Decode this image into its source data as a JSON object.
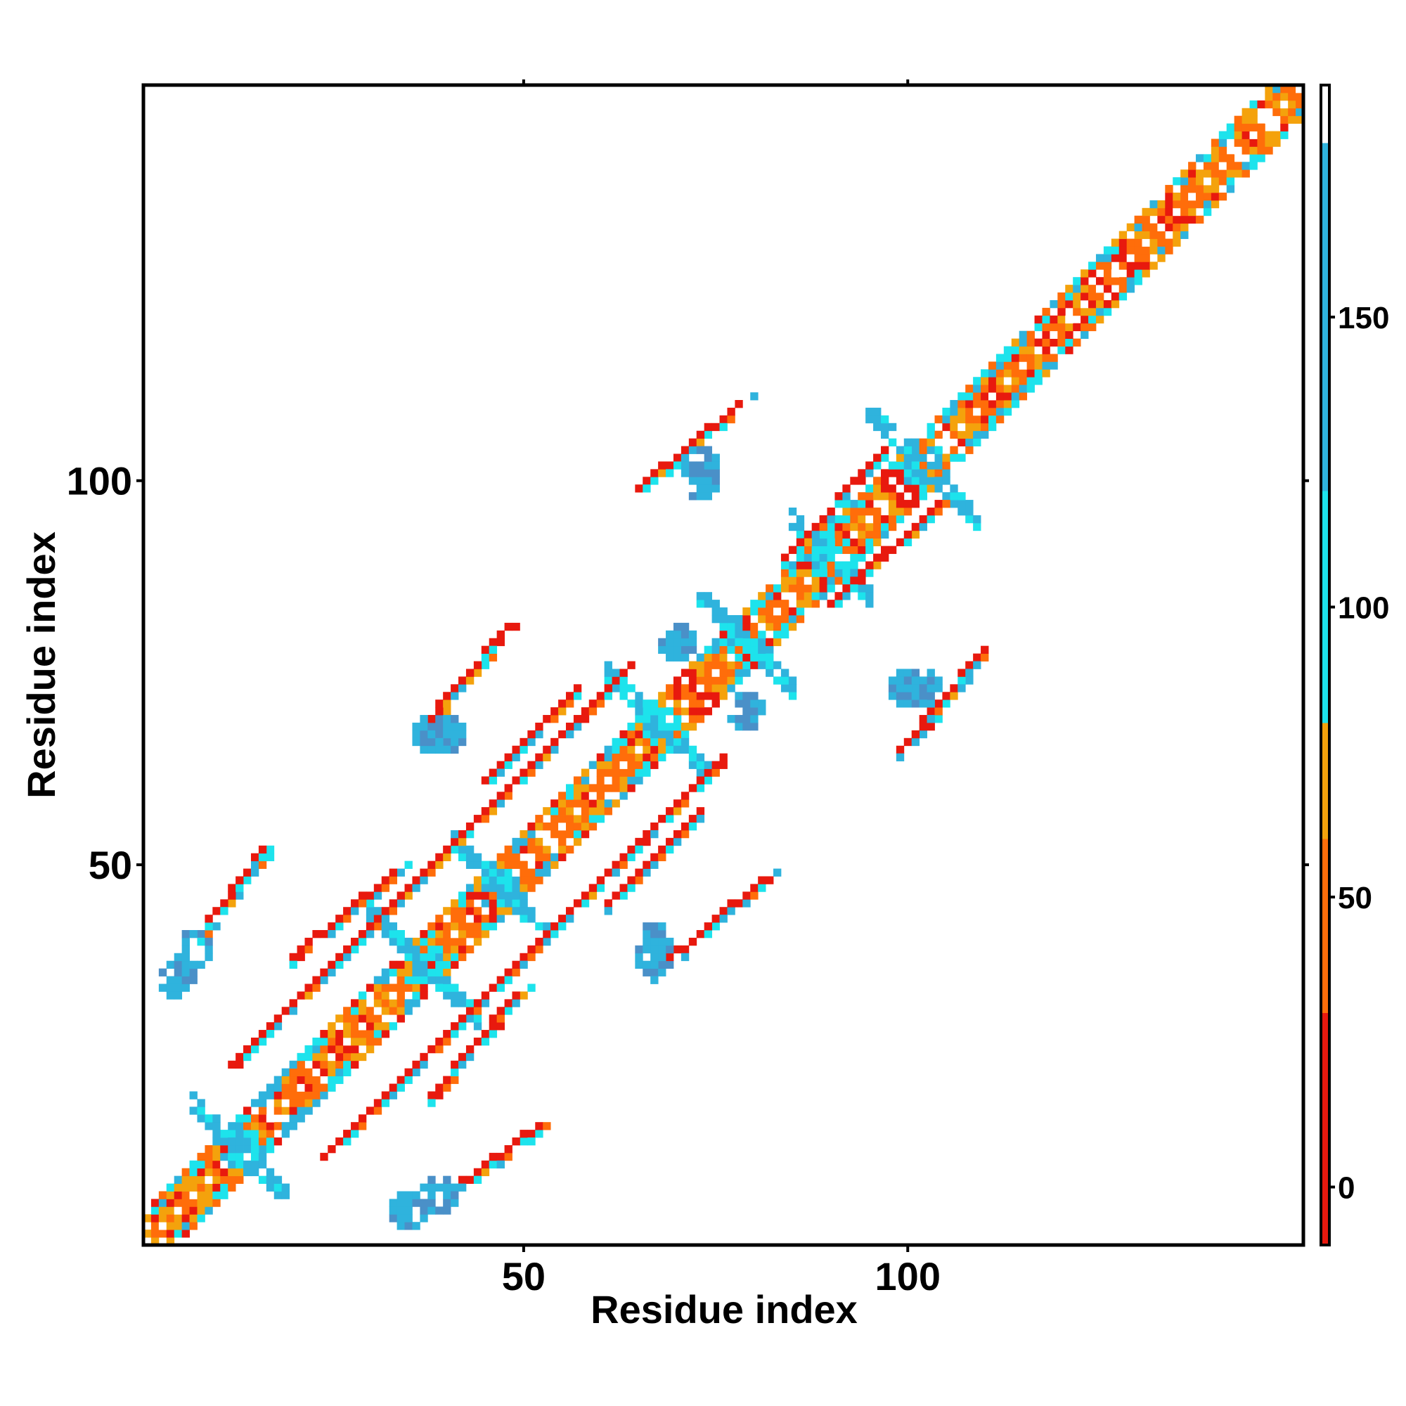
{
  "chart_data": {
    "type": "heatmap",
    "title": "",
    "xlabel": "Residue index",
    "ylabel": "Residue index",
    "xlim": [
      1,
      151
    ],
    "ylim": [
      1,
      151
    ],
    "x_ticks": [
      50,
      100
    ],
    "y_ticks": [
      50,
      100
    ],
    "grid": false,
    "legend": "colorbar-right",
    "colorbar": {
      "range": [
        -10,
        190
      ],
      "ticks": [
        0,
        50,
        100,
        150
      ],
      "bands": [
        {
          "from": -10,
          "to": 30,
          "color": "#e8190e"
        },
        {
          "from": 30,
          "to": 60,
          "color": "#ff6d0a"
        },
        {
          "from": 60,
          "to": 80,
          "color": "#f4a20c"
        },
        {
          "from": 80,
          "to": 120,
          "color": "#1de3ec"
        },
        {
          "from": 120,
          "to": 180,
          "color": "#2fb3dd"
        },
        {
          "from": 180,
          "to": 190,
          "color": "#ffffff"
        }
      ]
    },
    "colors": {
      "red": "#e8190e",
      "orange": "#ff6d0a",
      "amber": "#f4a20c",
      "cyan": "#1de3ec",
      "skyblue": "#2fb3dd",
      "steelblue": "#4a90c8"
    },
    "structure": {
      "main_diagonal": {
        "start": 1,
        "end": 151
      },
      "secondary_diagonals": [
        {
          "id": "d1",
          "from": [
            12,
            24
          ],
          "to": [
            64,
            76
          ]
        },
        {
          "id": "d2",
          "from": [
            24,
            12
          ],
          "to": [
            76,
            64
          ]
        },
        {
          "id": "d3",
          "from": [
            8,
            41
          ],
          "to": [
            16,
            52
          ]
        },
        {
          "id": "d4",
          "from": [
            41,
            8
          ],
          "to": [
            52,
            16
          ]
        },
        {
          "id": "d5",
          "from": [
            36,
            67
          ],
          "to": [
            48,
            81
          ]
        },
        {
          "id": "d6",
          "from": [
            67,
            36
          ],
          "to": [
            81,
            48
          ]
        },
        {
          "id": "d7",
          "from": [
            65,
            99
          ],
          "to": [
            78,
            110
          ]
        },
        {
          "id": "d8",
          "from": [
            99,
            65
          ],
          "to": [
            110,
            78
          ]
        },
        {
          "id": "d9",
          "from": [
            38,
            20
          ],
          "to": [
            49,
            33
          ]
        },
        {
          "id": "d10",
          "from": [
            20,
            38
          ],
          "to": [
            33,
            49
          ]
        },
        {
          "id": "d11",
          "from": [
            61,
            45
          ],
          "to": [
            73,
            57
          ]
        },
        {
          "id": "d12",
          "from": [
            45,
            61
          ],
          "to": [
            57,
            73
          ]
        },
        {
          "id": "d13",
          "from": [
            90,
            84
          ],
          "to": [
            104,
            97
          ]
        },
        {
          "id": "d14",
          "from": [
            84,
            90
          ],
          "to": [
            97,
            104
          ]
        }
      ],
      "cross_clusters": [
        {
          "center": [
            13,
            13
          ],
          "size": 6
        },
        {
          "center": [
            37,
            37
          ],
          "size": 7
        },
        {
          "center": [
            47,
            47
          ],
          "size": 6
        },
        {
          "center": [
            68,
            68
          ],
          "size": 7
        },
        {
          "center": [
            79,
            79
          ],
          "size": 6
        },
        {
          "center": [
            102,
            102
          ],
          "size": 7
        },
        {
          "center": [
            90,
            90
          ],
          "size": 5
        }
      ],
      "blue_blobs": [
        [
          35,
          5
        ],
        [
          5,
          35
        ],
        [
          7,
          39
        ],
        [
          39,
          7
        ],
        [
          38,
          67
        ],
        [
          67,
          38
        ],
        [
          70,
          79
        ],
        [
          79,
          70
        ],
        [
          73,
          100
        ],
        [
          100,
          73
        ],
        [
          67,
          40
        ],
        [
          40,
          67
        ],
        [
          102,
          73
        ],
        [
          73,
          102
        ]
      ]
    }
  }
}
